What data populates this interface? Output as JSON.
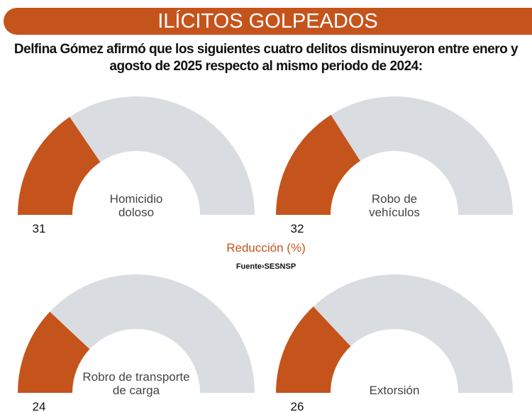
{
  "header": {
    "title": "ILÍCITOS GOLPEADOS",
    "subtitle_line1": "Delfina Gómez afirmó que los siguientes cuatro delitos disminuyeron entre enero y",
    "subtitle_line2": "agosto de 2025 respecto al mismo periodo de 2024:"
  },
  "chart_data": {
    "type": "gauge",
    "unit": "%",
    "legend": "Reducción (%)",
    "source": "Fuente›SESNSP",
    "range": [
      0,
      100
    ],
    "colors": {
      "value": "#c5541c",
      "track": "#d9dde1"
    },
    "items": [
      {
        "label_line1": "Homicidio",
        "label_line2": "doloso",
        "value": 31
      },
      {
        "label_line1": "Robo de",
        "label_line2": "vehículos",
        "value": 32
      },
      {
        "label_line1": "Robro de transporte",
        "label_line2": "de carga",
        "value": 24
      },
      {
        "label_line1": "",
        "label_line2": "Extorsión",
        "value": 26
      }
    ]
  }
}
